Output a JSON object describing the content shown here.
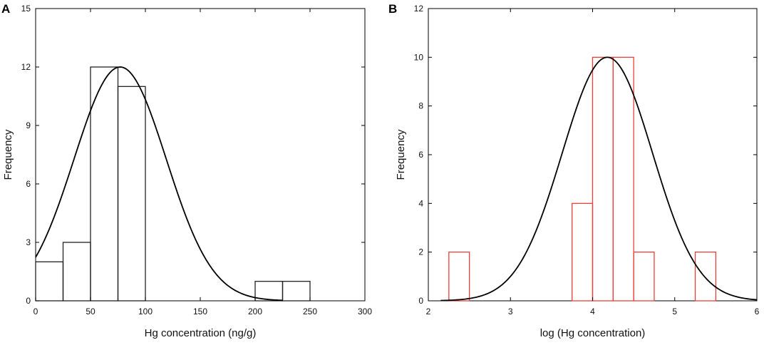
{
  "chart_data": [
    {
      "type": "bar",
      "panel_label": "A",
      "xlabel": "Hg concentration (ng/g)",
      "ylabel": "Frequency",
      "xlim": [
        0,
        300
      ],
      "ylim": [
        0,
        15
      ],
      "xticks": [
        0,
        50,
        100,
        150,
        200,
        250,
        300
      ],
      "yticks": [
        0,
        3,
        6,
        9,
        12,
        15
      ],
      "bins": [
        {
          "start": 0,
          "end": 25,
          "value": 2
        },
        {
          "start": 25,
          "end": 50,
          "value": 3
        },
        {
          "start": 50,
          "end": 75,
          "value": 12
        },
        {
          "start": 75,
          "end": 100,
          "value": 11
        },
        {
          "start": 200,
          "end": 225,
          "value": 1
        },
        {
          "start": 225,
          "end": 250,
          "value": 1
        }
      ],
      "bar_color": "#222222",
      "curve": {
        "type": "normal",
        "mean": 77,
        "sd": 42,
        "peak": 12,
        "x_range": [
          0,
          225
        ],
        "color": "#000000"
      },
      "grid": false
    },
    {
      "type": "bar",
      "panel_label": "B",
      "xlabel": "log (Hg concentration)",
      "ylabel": "Frequency",
      "xlim": [
        2,
        6
      ],
      "ylim": [
        0,
        12
      ],
      "xticks": [
        2,
        3,
        4,
        5,
        6
      ],
      "yticks": [
        0,
        2,
        4,
        6,
        8,
        10,
        12
      ],
      "bins": [
        {
          "start": 2.25,
          "end": 2.5,
          "value": 2
        },
        {
          "start": 3.75,
          "end": 4.0,
          "value": 4
        },
        {
          "start": 4.0,
          "end": 4.25,
          "value": 10
        },
        {
          "start": 4.25,
          "end": 4.5,
          "value": 10
        },
        {
          "start": 4.5,
          "end": 4.75,
          "value": 2
        },
        {
          "start": 5.25,
          "end": 5.5,
          "value": 2
        }
      ],
      "bar_color": "#e8413c",
      "curve": {
        "type": "normal",
        "mean": 4.18,
        "sd": 0.55,
        "peak": 10,
        "x_range": [
          2.15,
          6.0
        ],
        "color": "#000000"
      },
      "grid": false
    }
  ]
}
